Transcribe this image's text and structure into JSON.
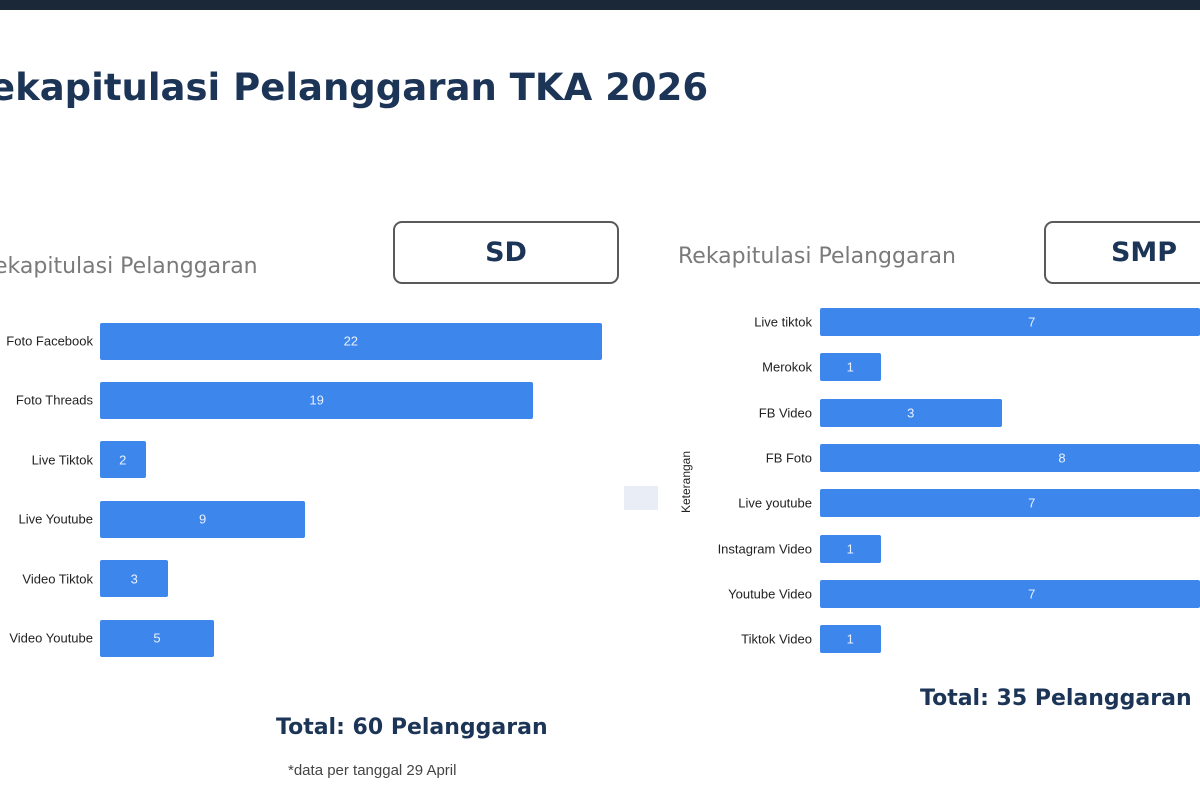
{
  "title": "ekapitulasi Pelanggaran TKA 2026",
  "footnote": "*data per tanggal 29 April",
  "colors": {
    "bar": "#3d86ec",
    "title": "#1c3557"
  },
  "chart_data": [
    {
      "type": "bar",
      "orientation": "horizontal",
      "title": "ekapitulasi Pelanggaran",
      "badge": "SD",
      "categories": [
        "Foto Facebook",
        "Foto Threads",
        "Live Tiktok",
        "Live Youtube",
        "Video Tiktok",
        "Video Youtube"
      ],
      "values": [
        22,
        19,
        2,
        9,
        3,
        5
      ],
      "ylabel": "",
      "total": "Total: 60 Pelanggaran",
      "grid": false
    },
    {
      "type": "bar",
      "orientation": "horizontal",
      "title": "Rekapitulasi Pelanggaran",
      "badge": "SMP",
      "categories": [
        "Live tiktok",
        "Merokok",
        "FB Video",
        "FB Foto",
        "Live youtube",
        "Instagram Video",
        "Youtube Video",
        "Tiktok Video"
      ],
      "values": [
        7,
        1,
        3,
        8,
        7,
        1,
        7,
        1
      ],
      "ylabel": "Keterangan",
      "total": "Total: 35 Pelanggaran",
      "grid": false
    }
  ]
}
